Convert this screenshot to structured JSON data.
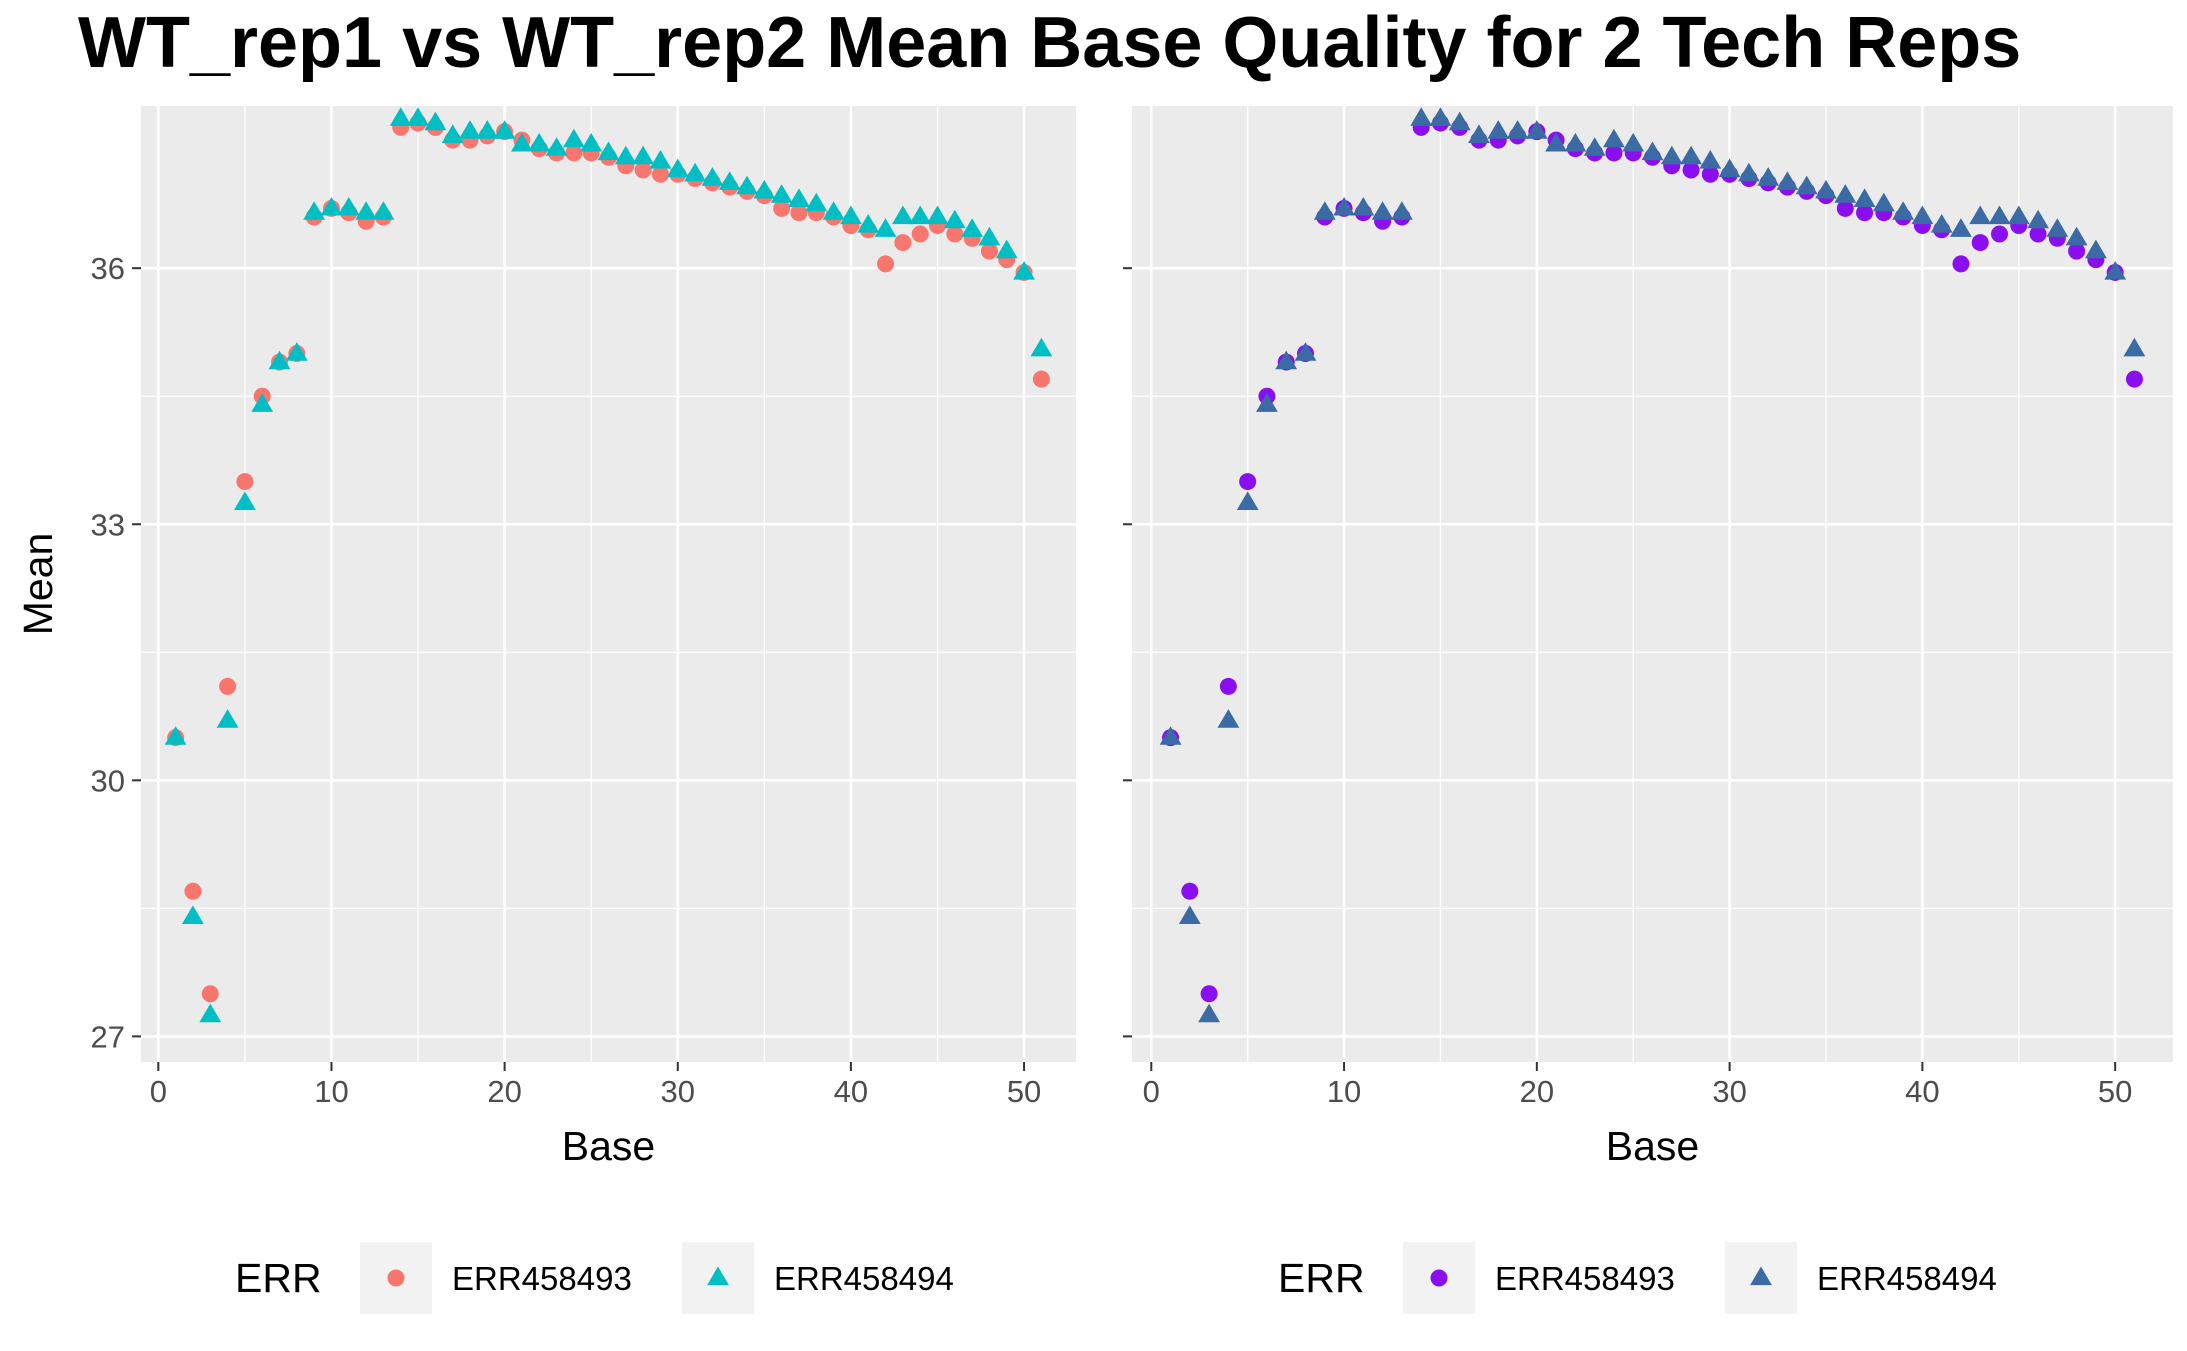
{
  "title": "WT_rep1 vs WT_rep2 Mean Base Quality for 2 Tech Reps",
  "chart_data": [
    {
      "type": "scatter",
      "xlabel": "Base",
      "ylabel": "Mean",
      "xlim": [
        -1,
        53
      ],
      "ylim": [
        26.7,
        37.9
      ],
      "xticks": [
        0,
        10,
        20,
        30,
        40,
        50
      ],
      "yticks": [
        27,
        30,
        33,
        36
      ],
      "grid": true,
      "legend": {
        "title": "ERR",
        "placement": "bottom"
      },
      "series": [
        {
          "name": "ERR458493",
          "marker": "circle",
          "color": "#F8766D",
          "x": [
            1,
            2,
            3,
            4,
            5,
            6,
            7,
            8,
            9,
            10,
            11,
            12,
            13,
            14,
            15,
            16,
            17,
            18,
            19,
            20,
            21,
            22,
            23,
            24,
            25,
            26,
            27,
            28,
            29,
            30,
            31,
            32,
            33,
            34,
            35,
            36,
            37,
            38,
            39,
            40,
            41,
            42,
            43,
            44,
            45,
            46,
            47,
            48,
            49,
            50,
            51
          ],
          "values": [
            30.5,
            28.7,
            27.5,
            31.1,
            33.5,
            34.5,
            34.9,
            35.0,
            36.6,
            36.7,
            36.65,
            36.55,
            36.6,
            37.65,
            37.7,
            37.65,
            37.5,
            37.5,
            37.55,
            37.6,
            37.5,
            37.4,
            37.35,
            37.35,
            37.35,
            37.3,
            37.2,
            37.15,
            37.1,
            37.1,
            37.05,
            37.0,
            36.95,
            36.9,
            36.85,
            36.7,
            36.65,
            36.65,
            36.6,
            36.5,
            36.45,
            36.05,
            36.3,
            36.4,
            36.5,
            36.4,
            36.35,
            36.2,
            36.1,
            35.95,
            34.7
          ]
        },
        {
          "name": "ERR458494",
          "marker": "triangle",
          "color": "#00BFC4",
          "x": [
            1,
            2,
            3,
            4,
            5,
            6,
            7,
            8,
            9,
            10,
            11,
            12,
            13,
            14,
            15,
            16,
            17,
            18,
            19,
            20,
            21,
            22,
            23,
            24,
            25,
            26,
            27,
            28,
            29,
            30,
            31,
            32,
            33,
            34,
            35,
            36,
            37,
            38,
            39,
            40,
            41,
            42,
            43,
            44,
            45,
            46,
            47,
            48,
            49,
            50,
            51
          ],
          "values": [
            30.5,
            28.4,
            27.25,
            30.7,
            33.25,
            34.4,
            34.9,
            35.0,
            36.65,
            36.7,
            36.7,
            36.65,
            36.65,
            37.75,
            37.75,
            37.7,
            37.55,
            37.6,
            37.6,
            37.6,
            37.45,
            37.45,
            37.4,
            37.5,
            37.45,
            37.35,
            37.3,
            37.3,
            37.25,
            37.15,
            37.1,
            37.05,
            37.0,
            36.95,
            36.9,
            36.85,
            36.8,
            36.75,
            36.65,
            36.6,
            36.5,
            36.45,
            36.6,
            36.6,
            36.6,
            36.55,
            36.45,
            36.35,
            36.2,
            35.95,
            35.05
          ]
        }
      ]
    },
    {
      "type": "scatter",
      "xlabel": "Base",
      "ylabel": "",
      "xlim": [
        -1,
        53
      ],
      "ylim": [
        26.7,
        37.9
      ],
      "xticks": [
        0,
        10,
        20,
        30,
        40,
        50
      ],
      "yticks": [
        27,
        30,
        33,
        36
      ],
      "grid": true,
      "legend": {
        "title": "ERR",
        "placement": "bottom"
      },
      "series": [
        {
          "name": "ERR458493",
          "marker": "circle",
          "color": "#8A0EF0",
          "x": [
            1,
            2,
            3,
            4,
            5,
            6,
            7,
            8,
            9,
            10,
            11,
            12,
            13,
            14,
            15,
            16,
            17,
            18,
            19,
            20,
            21,
            22,
            23,
            24,
            25,
            26,
            27,
            28,
            29,
            30,
            31,
            32,
            33,
            34,
            35,
            36,
            37,
            38,
            39,
            40,
            41,
            42,
            43,
            44,
            45,
            46,
            47,
            48,
            49,
            50,
            51
          ],
          "values": [
            30.5,
            28.7,
            27.5,
            31.1,
            33.5,
            34.5,
            34.9,
            35.0,
            36.6,
            36.7,
            36.65,
            36.55,
            36.6,
            37.65,
            37.7,
            37.65,
            37.5,
            37.5,
            37.55,
            37.6,
            37.5,
            37.4,
            37.35,
            37.35,
            37.35,
            37.3,
            37.2,
            37.15,
            37.1,
            37.1,
            37.05,
            37.0,
            36.95,
            36.9,
            36.85,
            36.7,
            36.65,
            36.65,
            36.6,
            36.5,
            36.45,
            36.05,
            36.3,
            36.4,
            36.5,
            36.4,
            36.35,
            36.2,
            36.1,
            35.95,
            34.7
          ]
        },
        {
          "name": "ERR458494",
          "marker": "triangle",
          "color": "#3A6BA5",
          "x": [
            1,
            2,
            3,
            4,
            5,
            6,
            7,
            8,
            9,
            10,
            11,
            12,
            13,
            14,
            15,
            16,
            17,
            18,
            19,
            20,
            21,
            22,
            23,
            24,
            25,
            26,
            27,
            28,
            29,
            30,
            31,
            32,
            33,
            34,
            35,
            36,
            37,
            38,
            39,
            40,
            41,
            42,
            43,
            44,
            45,
            46,
            47,
            48,
            49,
            50,
            51
          ],
          "values": [
            30.5,
            28.4,
            27.25,
            30.7,
            33.25,
            34.4,
            34.9,
            35.0,
            36.65,
            36.7,
            36.7,
            36.65,
            36.65,
            37.75,
            37.75,
            37.7,
            37.55,
            37.6,
            37.6,
            37.6,
            37.45,
            37.45,
            37.4,
            37.5,
            37.45,
            37.35,
            37.3,
            37.3,
            37.25,
            37.15,
            37.1,
            37.05,
            37.0,
            36.95,
            36.9,
            36.85,
            36.8,
            36.75,
            36.65,
            36.6,
            36.5,
            36.45,
            36.6,
            36.6,
            36.6,
            36.55,
            36.45,
            36.35,
            36.2,
            35.95,
            35.05
          ]
        }
      ]
    }
  ]
}
